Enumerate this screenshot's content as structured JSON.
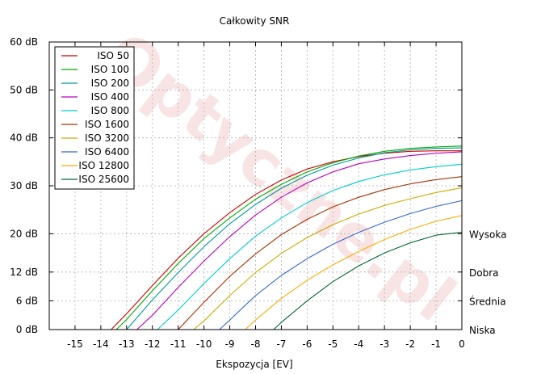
{
  "chart_data": {
    "type": "line",
    "title": "Całkowity SNR",
    "xlabel": "Ekspozycja [EV]",
    "ylabel": "",
    "xlim": [
      -16,
      0
    ],
    "ylim": [
      0,
      60
    ],
    "grid": true,
    "legend_position": "top-left",
    "xticks": [
      -15,
      -14,
      -13,
      -12,
      -11,
      -10,
      -9,
      -8,
      -7,
      -6,
      -5,
      -4,
      -3,
      -2,
      -1,
      0
    ],
    "xtick_labels": [
      "-15",
      "-14",
      "-13",
      "-12",
      "-11",
      "-10",
      "-9",
      "-8",
      "-7",
      "-6",
      "-5",
      "-4",
      "-3",
      "-2",
      "-1",
      "0"
    ],
    "yticks": [
      0,
      6,
      12,
      20,
      30,
      40,
      50,
      60
    ],
    "ytick_labels": [
      "0 dB",
      "6 dB",
      "12 dB",
      "20 dB",
      "30 dB",
      "40 dB",
      "50 dB",
      "60 dB"
    ],
    "right_annotations": [
      {
        "y": 20,
        "label": "Wysoka"
      },
      {
        "y": 12,
        "label": "Dobra"
      },
      {
        "y": 6,
        "label": "Średnia"
      },
      {
        "y": 0,
        "label": "Niska"
      }
    ],
    "watermark": "Optyczne.pl",
    "series": [
      {
        "name": "ISO 50",
        "color": "#cc0000",
        "x": [
          -13.6,
          -13.0,
          -12.0,
          -11.0,
          -10.0,
          -9.0,
          -8.0,
          -7.0,
          -6.0,
          -5.0,
          -4.0,
          -3.0,
          -2.0,
          -1.0,
          0.0
        ],
        "y": [
          0.0,
          3.3,
          9.2,
          14.9,
          20.0,
          24.4,
          28.2,
          31.2,
          33.5,
          35.0,
          36.1,
          36.8,
          37.2,
          37.3,
          37.3
        ]
      },
      {
        "name": "ISO 100",
        "color": "#00aa00",
        "x": [
          -13.4,
          -13.0,
          -12.0,
          -11.0,
          -10.0,
          -9.0,
          -8.0,
          -7.0,
          -6.0,
          -5.0,
          -4.0,
          -3.0,
          -2.0,
          -1.0,
          0.0
        ],
        "y": [
          0.0,
          2.1,
          8.1,
          13.8,
          19.0,
          23.3,
          27.2,
          30.3,
          32.9,
          34.8,
          36.2,
          37.2,
          37.8,
          38.1,
          38.3
        ]
      },
      {
        "name": "ISO 200",
        "color": "#009999",
        "x": [
          -13.0,
          -12.0,
          -11.0,
          -10.0,
          -9.0,
          -8.0,
          -7.0,
          -6.0,
          -5.0,
          -4.0,
          -3.0,
          -2.0,
          -1.0,
          0.0
        ],
        "y": [
          0.0,
          6.2,
          11.9,
          17.3,
          22.1,
          26.1,
          29.5,
          32.2,
          34.3,
          35.8,
          36.9,
          37.5,
          37.8,
          37.9
        ]
      },
      {
        "name": "ISO 400",
        "color": "#bb00bb",
        "x": [
          -12.6,
          -12.0,
          -11.0,
          -10.0,
          -9.0,
          -8.0,
          -7.0,
          -6.0,
          -5.0,
          -4.0,
          -3.0,
          -2.0,
          -1.0,
          0.0
        ],
        "y": [
          0.0,
          3.0,
          8.8,
          14.3,
          19.4,
          23.9,
          27.6,
          30.6,
          32.9,
          34.6,
          35.6,
          36.3,
          36.8,
          37.1
        ]
      },
      {
        "name": "ISO 800",
        "color": "#00cccc",
        "x": [
          -11.8,
          -11.0,
          -10.0,
          -9.0,
          -8.0,
          -7.0,
          -6.0,
          -5.0,
          -4.0,
          -3.0,
          -2.0,
          -1.0,
          0.0
        ],
        "y": [
          0.0,
          4.1,
          9.6,
          14.8,
          19.5,
          23.3,
          26.5,
          29.0,
          30.9,
          32.3,
          33.3,
          34.0,
          34.5
        ]
      },
      {
        "name": "ISO 1600",
        "color": "#aa3300",
        "x": [
          -11.0,
          -10.0,
          -9.0,
          -8.0,
          -7.0,
          -6.0,
          -5.0,
          -4.0,
          -3.0,
          -2.0,
          -1.0,
          0.0
        ],
        "y": [
          0.0,
          5.7,
          11.1,
          15.8,
          19.8,
          23.0,
          25.6,
          27.6,
          29.2,
          30.4,
          31.3,
          31.9
        ]
      },
      {
        "name": "ISO 3200",
        "color": "#ccaa00",
        "x": [
          -10.4,
          -10.0,
          -9.0,
          -8.0,
          -7.0,
          -6.0,
          -5.0,
          -4.0,
          -3.0,
          -2.0,
          -1.0,
          0.0
        ],
        "y": [
          0.0,
          1.8,
          7.1,
          11.9,
          15.9,
          19.2,
          21.9,
          24.1,
          25.9,
          27.3,
          28.6,
          29.6
        ]
      },
      {
        "name": "ISO 6400",
        "color": "#3366cc",
        "x": [
          -9.4,
          -9.0,
          -8.0,
          -7.0,
          -6.0,
          -5.0,
          -4.0,
          -3.0,
          -2.0,
          -1.0,
          0.0
        ],
        "y": [
          0.0,
          2.0,
          7.1,
          11.3,
          14.8,
          17.8,
          20.3,
          22.4,
          24.2,
          25.7,
          26.9
        ]
      },
      {
        "name": "ISO 12800",
        "color": "#ffaa00",
        "x": [
          -8.4,
          -8.0,
          -7.0,
          -6.0,
          -5.0,
          -4.0,
          -3.0,
          -2.0,
          -1.0,
          0.0
        ],
        "y": [
          0.0,
          2.0,
          6.5,
          10.3,
          13.5,
          16.3,
          18.8,
          20.9,
          22.6,
          23.8
        ]
      },
      {
        "name": "ISO 25600",
        "color": "#006633",
        "x": [
          -7.3,
          -7.0,
          -6.0,
          -5.0,
          -4.0,
          -3.0,
          -2.0,
          -1.0,
          0.0
        ],
        "y": [
          0.0,
          1.5,
          6.0,
          10.0,
          13.3,
          16.0,
          18.1,
          19.7,
          20.3
        ]
      }
    ]
  }
}
